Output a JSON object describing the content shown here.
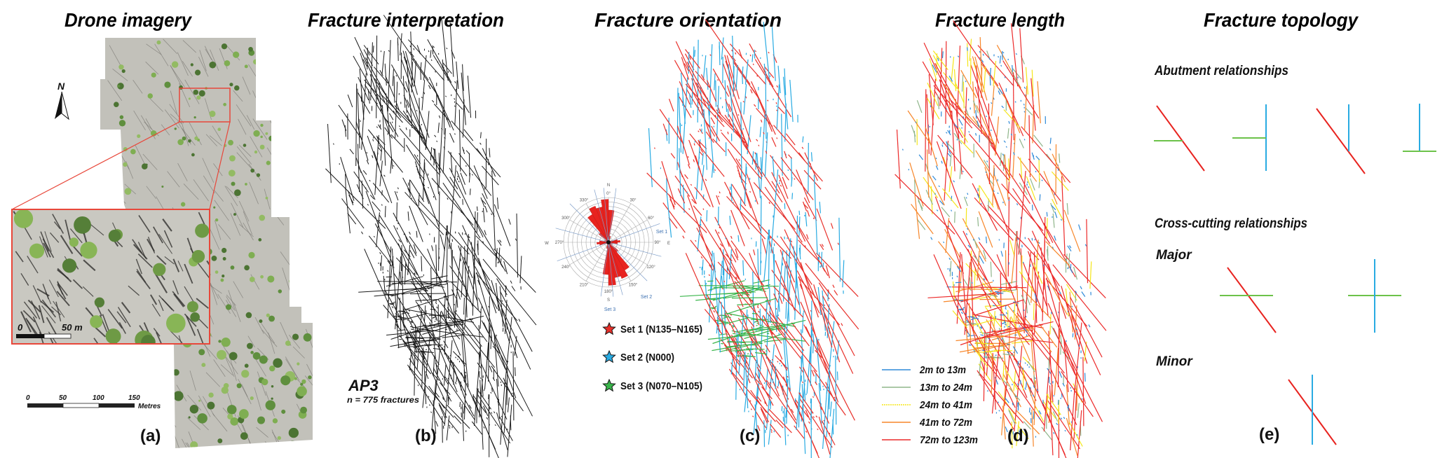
{
  "titles": {
    "drone": "Drone imagery",
    "interpretation": "Fracture interpretation",
    "orientation": "Fracture orientation",
    "length": "Fracture length",
    "topology": "Fracture topology"
  },
  "panel_labels": {
    "a": "(a)",
    "b": "(b)",
    "c": "(c)",
    "d": "(d)",
    "e": "(e)"
  },
  "drone": {
    "north_label": "N",
    "scale_bar": {
      "ticks": [
        "0",
        "50",
        "100",
        "150"
      ],
      "unit": "Metres"
    },
    "inset_scale": {
      "start": "0",
      "end": "50 m"
    }
  },
  "interpretation": {
    "site": "AP3",
    "count": "n = 775 fractures"
  },
  "orientation": {
    "rose": {
      "cardinals": {
        "n": "N",
        "e": "E",
        "s": "S",
        "w": "W"
      },
      "degree_labels": [
        "0°",
        "30°",
        "60°",
        "90°",
        "120°",
        "150°",
        "180°",
        "210°",
        "240°",
        "270°",
        "300°",
        "330°"
      ],
      "set_labels": {
        "set1": "Set 1",
        "set2": "Set 2",
        "set3": "Set 3"
      },
      "petal_color": "#e8231f",
      "set_line_color": "#7c9cc8",
      "bidirectional": true,
      "petal_bins": [
        {
          "from": 0,
          "to": 10,
          "relative_length": 0.72
        },
        {
          "from": 10,
          "to": 20,
          "relative_length": 0.14
        },
        {
          "from": 20,
          "to": 30,
          "relative_length": 0.05
        },
        {
          "from": 30,
          "to": 40,
          "relative_length": 0.04
        },
        {
          "from": 40,
          "to": 50,
          "relative_length": 0.04
        },
        {
          "from": 50,
          "to": 60,
          "relative_length": 0.05
        },
        {
          "from": 60,
          "to": 70,
          "relative_length": 0.08
        },
        {
          "from": 70,
          "to": 80,
          "relative_length": 0.2
        },
        {
          "from": 80,
          "to": 90,
          "relative_length": 0.26
        },
        {
          "from": 90,
          "to": 100,
          "relative_length": 0.2
        },
        {
          "from": 100,
          "to": 110,
          "relative_length": 0.1
        },
        {
          "from": 110,
          "to": 120,
          "relative_length": 0.06
        },
        {
          "from": 120,
          "to": 130,
          "relative_length": 0.08
        },
        {
          "from": 130,
          "to": 140,
          "relative_length": 0.28
        },
        {
          "from": 140,
          "to": 150,
          "relative_length": 0.72
        },
        {
          "from": 150,
          "to": 160,
          "relative_length": 0.86
        },
        {
          "from": 160,
          "to": 170,
          "relative_length": 0.8
        },
        {
          "from": 170,
          "to": 180,
          "relative_length": 0.96
        }
      ]
    },
    "legend": [
      {
        "label": "Set 1 (N135–N165)",
        "color": "#e8302a"
      },
      {
        "label": "Set 2 (N000)",
        "color": "#29abe2"
      },
      {
        "label": "Set 3 (N070–N105)",
        "color": "#39b54a"
      }
    ]
  },
  "length": {
    "legend": [
      {
        "label": "2m to 13m",
        "color": "#2e8ad8"
      },
      {
        "label": "13m to 24m",
        "color": "#8fb58a"
      },
      {
        "label": "24m to 41m",
        "color": "#f5e61a"
      },
      {
        "label": "41m to 72m",
        "color": "#f7862a"
      },
      {
        "label": "72m to 123m",
        "color": "#ec2a2a"
      }
    ]
  },
  "topology": {
    "abutment_heading": "Abutment relationships",
    "crosscut_heading": "Cross-cutting relationships",
    "major_label": "Major",
    "minor_label": "Minor",
    "colors": {
      "set1": "#e8231f",
      "set2": "#29abe2",
      "set3": "#6cc24a"
    }
  }
}
